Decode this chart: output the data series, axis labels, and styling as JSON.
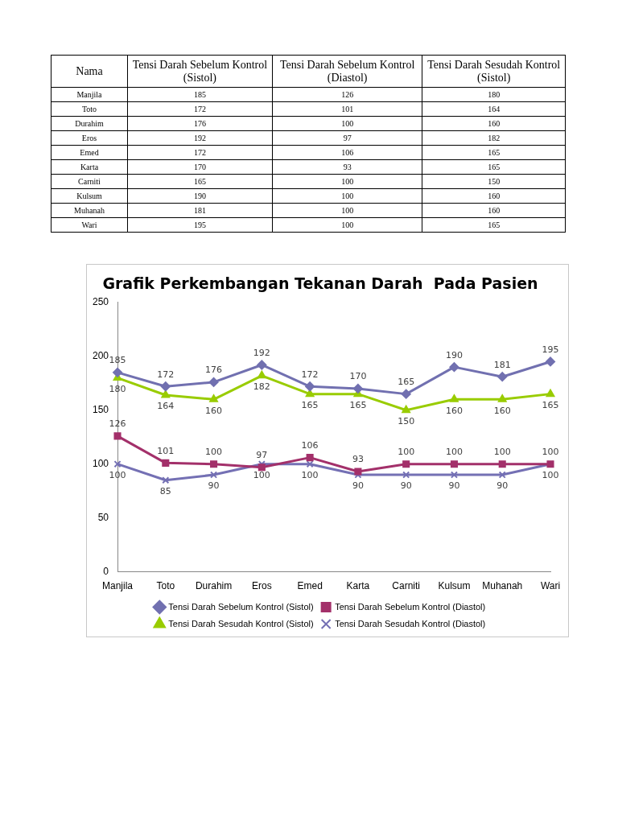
{
  "chart_data": [
    {
      "type": "other",
      "annotations": [
        "Nama"
      ],
      "data_labels": true,
      "categories": [
        "Manjila",
        "Toto",
        "Durahim",
        "Eros",
        "Emed",
        "Karta",
        "Carniti",
        "Kulsum",
        "Muhanah",
        "Wari"
      ],
      "series": [
        {
          "name": "Tensi Darah Sebelum Kontrol (Sistol)",
          "values": [
            185,
            172,
            176,
            192,
            172,
            170,
            165,
            190,
            181,
            195
          ]
        },
        {
          "name": "Tensi Darah Sebelum Kontrol (Diastol)",
          "values": [
            126,
            101,
            100,
            97,
            106,
            93,
            100,
            100,
            100,
            100
          ]
        },
        {
          "name": "Tensi Darah Sesudah Kontrol (Sistol)",
          "values": [
            180,
            164,
            160,
            182,
            165,
            165,
            150,
            160,
            160,
            165
          ]
        }
      ]
    },
    {
      "type": "line",
      "title": "Grafik Perkembangan Tekanan Darah  Pada Pasien",
      "categories": [
        "Manjila",
        "Toto",
        "Durahim",
        "Eros",
        "Emed",
        "Karta",
        "Carniti",
        "Kulsum",
        "Muhanah",
        "Wari"
      ],
      "series": [
        {
          "name": "Tensi Darah Sebelum Kontrol (Sistol)",
          "color": "#7170b0",
          "marker": "diamond",
          "values": [
            185,
            172,
            176,
            192,
            172,
            170,
            165,
            190,
            181,
            195
          ]
        },
        {
          "name": "Tensi Darah Sebelum Kontrol (Diastol)",
          "color": "#a3306a",
          "marker": "square",
          "values": [
            126,
            101,
            100,
            97,
            106,
            93,
            100,
            100,
            100,
            100
          ]
        },
        {
          "name": "Tensi Darah Sesudah Kontrol (Sistol)",
          "color": "#99cc00",
          "marker": "triangle",
          "values": [
            180,
            164,
            160,
            182,
            165,
            165,
            150,
            160,
            160,
            165
          ]
        },
        {
          "name": "Tensi Darah Sesudah Kontrol (Diastol)",
          "color": "#7470b4",
          "marker": "cross",
          "values": [
            100,
            85,
            90,
            100,
            100,
            90,
            90,
            90,
            90,
            100
          ]
        }
      ],
      "ylim": [
        0,
        250
      ],
      "yticks": [
        0,
        50,
        100,
        150,
        200,
        250
      ],
      "grid": false,
      "legend": "bottom",
      "data_labels": true
    }
  ]
}
